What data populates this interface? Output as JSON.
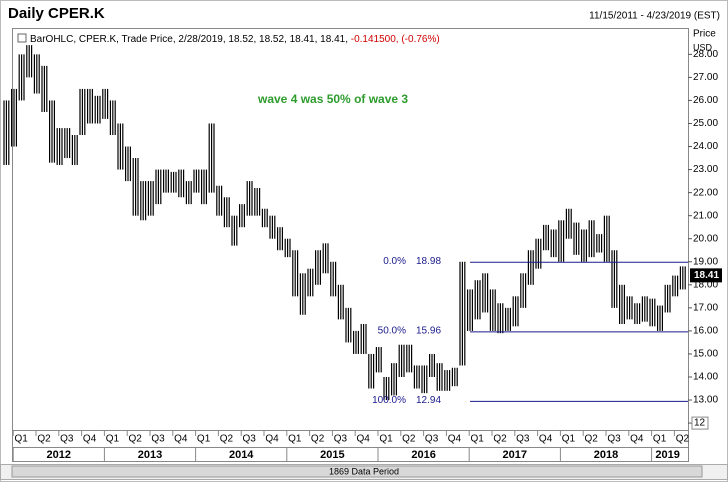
{
  "chart_data": {
    "type": "ohlc-range",
    "title": "Daily CPER.K",
    "date_range": "11/15/2011 - 4/23/2019 (EST)",
    "legend": "BarOHLC, CPER.K, Trade Price, 2/28/2019, 18.52, 18.52, 18.41, 18.41,",
    "legend_change": "-0.141500, (-0.76%)",
    "annotation": "wave 4 was 50% of wave 3",
    "axis_title": "Price",
    "axis_unit": "USD",
    "data_period": "1869 Data Period",
    "color": "#000000",
    "ylim": [
      11.7,
      29.1
    ],
    "yticks": [
      {
        "value": 28,
        "label": "28.00"
      },
      {
        "value": 27,
        "label": "27.00"
      },
      {
        "value": 26,
        "label": "26.00"
      },
      {
        "value": 25,
        "label": "25.00"
      },
      {
        "value": 24,
        "label": "24.00"
      },
      {
        "value": 23,
        "label": "23.00"
      },
      {
        "value": 22,
        "label": "22.00"
      },
      {
        "value": 21,
        "label": "21.00"
      },
      {
        "value": 20,
        "label": "20.00"
      },
      {
        "value": 19,
        "label": "19.00"
      },
      {
        "value": 18,
        "label": "18.00"
      },
      {
        "value": 17,
        "label": "17.00"
      },
      {
        "value": 16,
        "label": "16.00"
      },
      {
        "value": 15,
        "label": "15.00"
      },
      {
        "value": 14,
        "label": "14.00"
      },
      {
        "value": 13,
        "label": "13.00"
      },
      12
    ],
    "last": 18.41,
    "quarters": [
      "Q1",
      "Q2",
      "Q3",
      "Q4",
      "Q1",
      "Q2",
      "Q3",
      "Q4",
      "Q1",
      "Q2",
      "Q3",
      "Q4",
      "Q1",
      "Q2",
      "Q3",
      "Q4",
      "Q1",
      "Q2",
      "Q3",
      "Q4",
      "Q1",
      "Q2",
      "Q3",
      "Q4",
      "Q1",
      "Q2",
      "Q3",
      "Q4",
      "Q1",
      "Q2"
    ],
    "years": [
      "2012",
      "2013",
      "2014",
      "2015",
      "2016",
      "2017",
      "2018",
      "2019"
    ],
    "fib_levels": [
      {
        "label": "0.0%",
        "value": 18.98
      },
      {
        "label": "50.0%",
        "value": 15.96
      },
      {
        "label": "100.0%",
        "value": 12.94
      }
    ],
    "bars": [
      {
        "low": 23.2,
        "high": 26
      },
      {
        "low": 24,
        "high": 26.5
      },
      {
        "low": 26,
        "high": 28
      },
      {
        "low": 27,
        "high": 28.4
      },
      {
        "low": 26.3,
        "high": 28
      },
      {
        "low": 25.5,
        "high": 27.5
      },
      {
        "low": 23.3,
        "high": 26
      },
      {
        "low": 23.2,
        "high": 24.8
      },
      {
        "low": 23.5,
        "high": 24.8
      },
      {
        "low": 23.2,
        "high": 24.5
      },
      {
        "low": 24.5,
        "high": 26.5
      },
      {
        "low": 25,
        "high": 26.5
      },
      {
        "low": 25,
        "high": 26.2
      },
      {
        "low": 25.2,
        "high": 26.5
      },
      {
        "low": 24.5,
        "high": 26
      },
      {
        "low": 23,
        "high": 25
      },
      {
        "low": 22.5,
        "high": 24
      },
      {
        "low": 21,
        "high": 23.5
      },
      {
        "low": 20.8,
        "high": 22.5
      },
      {
        "low": 21,
        "high": 22.5
      },
      {
        "low": 21.5,
        "high": 23
      },
      {
        "low": 22,
        "high": 23
      },
      {
        "low": 22,
        "high": 22.9
      },
      {
        "low": 21.8,
        "high": 23
      },
      {
        "low": 21.5,
        "high": 22.5
      },
      {
        "low": 22,
        "high": 23
      },
      {
        "low": 21.5,
        "high": 23
      },
      {
        "low": 22,
        "high": 25
      },
      {
        "low": 21,
        "high": 22.3
      },
      {
        "low": 20.5,
        "high": 21.8
      },
      {
        "low": 19.7,
        "high": 21
      },
      {
        "low": 20.5,
        "high": 21.5
      },
      {
        "low": 21,
        "high": 22.5
      },
      {
        "low": 21,
        "high": 22.2
      },
      {
        "low": 20.5,
        "high": 21.3
      },
      {
        "low": 20,
        "high": 21
      },
      {
        "low": 19.5,
        "high": 20.5
      },
      {
        "low": 19.2,
        "high": 20
      },
      {
        "low": 17.5,
        "high": 19.5
      },
      {
        "low": 16.7,
        "high": 18.5
      },
      {
        "low": 17.5,
        "high": 18.7
      },
      {
        "low": 18,
        "high": 19.5
      },
      {
        "low": 18.5,
        "high": 19.8
      },
      {
        "low": 17.5,
        "high": 19
      },
      {
        "low": 16.5,
        "high": 18
      },
      {
        "low": 15.5,
        "high": 17
      },
      {
        "low": 15,
        "high": 16
      },
      {
        "low": 15,
        "high": 16.3
      },
      {
        "low": 13.5,
        "high": 15
      },
      {
        "low": 14.2,
        "high": 15.3
      },
      {
        "low": 13,
        "high": 14
      },
      {
        "low": 13.2,
        "high": 14.6
      },
      {
        "low": 14,
        "high": 15.4
      },
      {
        "low": 14.2,
        "high": 15.4
      },
      {
        "low": 13.5,
        "high": 14.5
      },
      {
        "low": 13.3,
        "high": 14.5
      },
      {
        "low": 14,
        "high": 15
      },
      {
        "low": 13.4,
        "high": 14.6
      },
      {
        "low": 13.4,
        "high": 14.3
      },
      {
        "low": 13.6,
        "high": 14.4
      },
      {
        "low": 14.5,
        "high": 19
      },
      {
        "low": 16,
        "high": 17.8
      },
      {
        "low": 16.5,
        "high": 18.2
      },
      {
        "low": 16.8,
        "high": 18.5
      },
      {
        "low": 16,
        "high": 17.8
      },
      {
        "low": 15.9,
        "high": 17.2
      },
      {
        "low": 16,
        "high": 17
      },
      {
        "low": 16.2,
        "high": 17.5
      },
      {
        "low": 17,
        "high": 18.5
      },
      {
        "low": 18,
        "high": 19.5
      },
      {
        "low": 18.7,
        "high": 20
      },
      {
        "low": 19.5,
        "high": 20.6
      },
      {
        "low": 19.2,
        "high": 20.4
      },
      {
        "low": 19,
        "high": 20.8
      },
      {
        "low": 20,
        "high": 21.3
      },
      {
        "low": 19.3,
        "high": 20.7
      },
      {
        "low": 19,
        "high": 20.4
      },
      {
        "low": 19.2,
        "high": 20.8
      },
      {
        "low": 19.4,
        "high": 20.2
      },
      {
        "low": 19,
        "high": 21
      },
      {
        "low": 17,
        "high": 19.5
      },
      {
        "low": 16.3,
        "high": 18
      },
      {
        "low": 16.5,
        "high": 17.5
      },
      {
        "low": 16.3,
        "high": 17.2
      },
      {
        "low": 16.4,
        "high": 17.5
      },
      {
        "low": 16.2,
        "high": 17.4
      },
      {
        "low": 16,
        "high": 17.1
      },
      {
        "low": 16.8,
        "high": 18
      },
      {
        "low": 17.5,
        "high": 18.4
      },
      {
        "low": 17.8,
        "high": 18.8
      }
    ]
  }
}
